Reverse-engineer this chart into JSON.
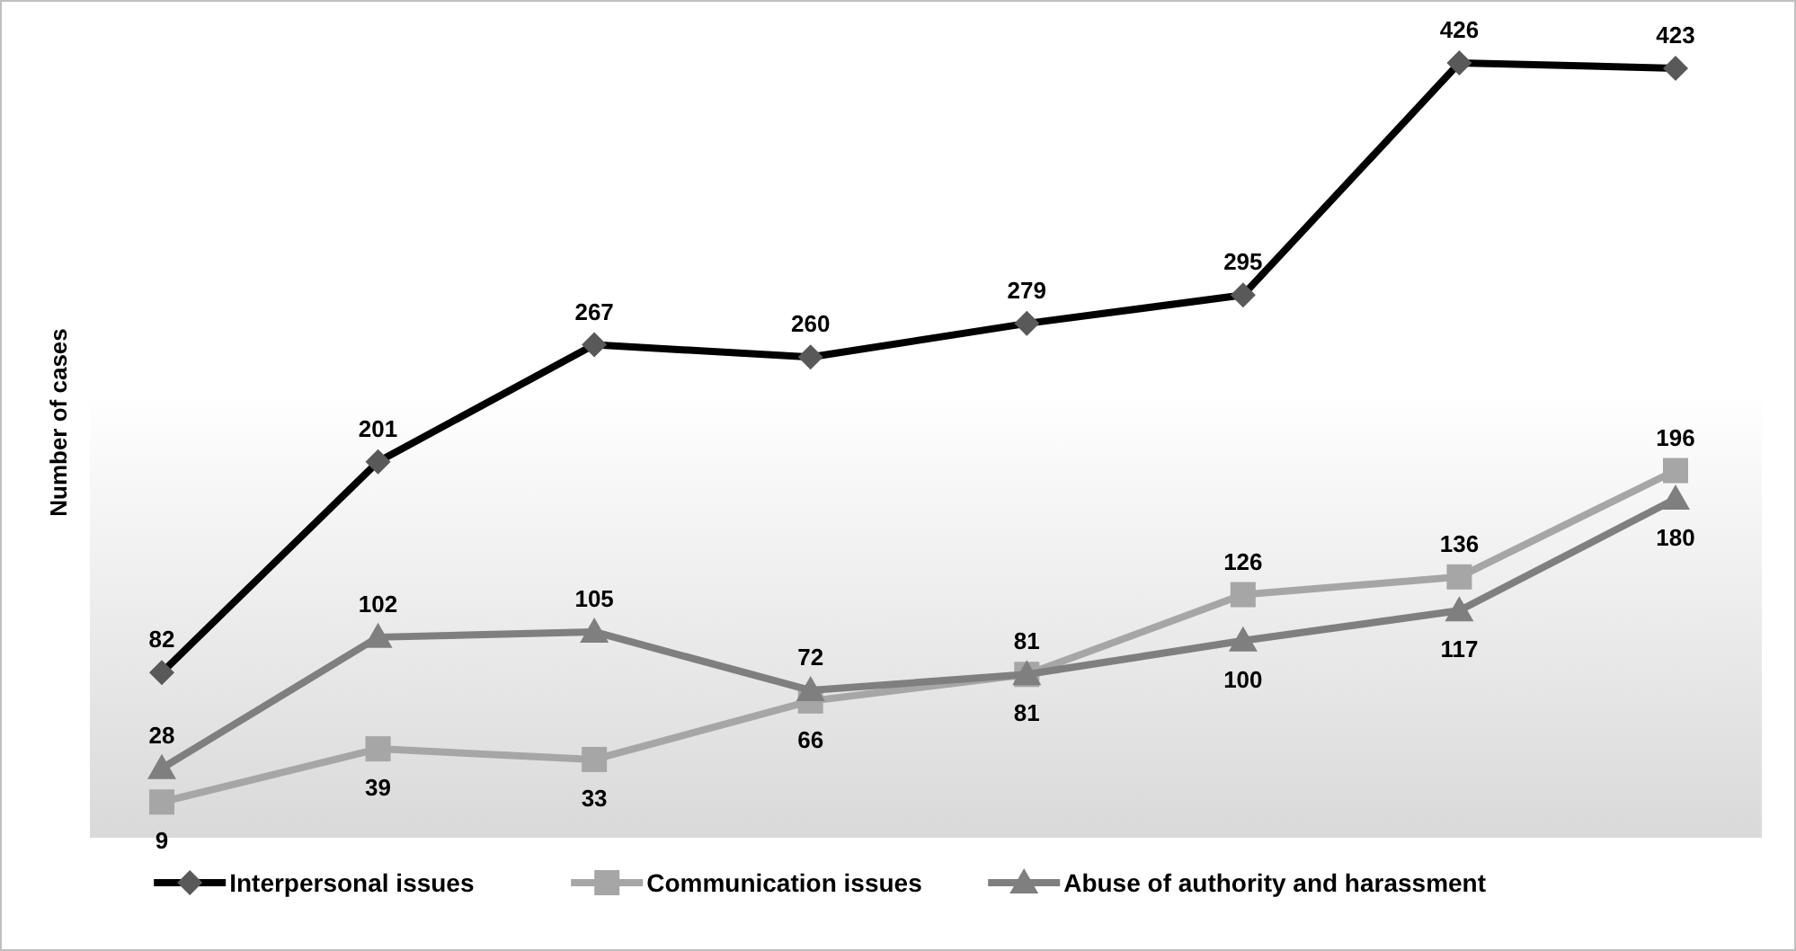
{
  "chart_data": {
    "type": "line",
    "ylabel": "Number of cases",
    "categories": [
      null,
      null,
      null,
      null,
      null,
      null,
      null,
      null
    ],
    "legend": "bottom",
    "data_labels": true,
    "series": [
      {
        "name": "Interpersonal issues",
        "color": "#000000",
        "marker": "diamond",
        "values": [
          82,
          201,
          267,
          260,
          279,
          295,
          426,
          423
        ]
      },
      {
        "name": "Communication issues",
        "color": "#a6a6a6",
        "marker": "square",
        "values": [
          9,
          39,
          33,
          66,
          81,
          126,
          136,
          196
        ]
      },
      {
        "name": "Abuse of authority and harassment",
        "color": "#7f7f7f",
        "marker": "triangle",
        "values": [
          28,
          102,
          105,
          72,
          81,
          100,
          117,
          180
        ]
      }
    ]
  }
}
